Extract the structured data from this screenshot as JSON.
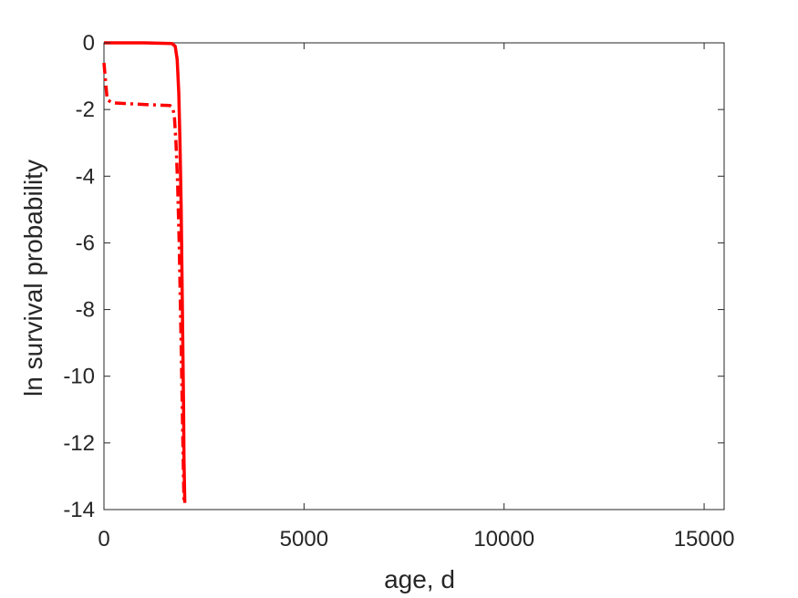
{
  "chart_data": {
    "type": "line",
    "xlabel": "age, d",
    "ylabel": "ln survival probability",
    "xlim": [
      0,
      15500
    ],
    "ylim": [
      -14,
      0
    ],
    "xticks": [
      0,
      5000,
      10000,
      15000
    ],
    "yticks": [
      0,
      -2,
      -4,
      -6,
      -8,
      -10,
      -12,
      -14
    ],
    "xtick_labels": [
      "0",
      "5000",
      "10000",
      "15000"
    ],
    "ytick_labels": [
      "0",
      "-2",
      "-4",
      "-6",
      "-8",
      "-10",
      "-12",
      "-14"
    ],
    "grid": false,
    "series": [
      {
        "color": "#ff0000",
        "style": "solid",
        "points": [
          [
            0,
            0
          ],
          [
            1000,
            0
          ],
          [
            1700,
            -0.02
          ],
          [
            1780,
            -0.1
          ],
          [
            1830,
            -0.5
          ],
          [
            1870,
            -1.5
          ],
          [
            1900,
            -3
          ],
          [
            1930,
            -5
          ],
          [
            1950,
            -7
          ],
          [
            1970,
            -9
          ],
          [
            1990,
            -11
          ],
          [
            2000,
            -12.5
          ],
          [
            2020,
            -13.8
          ]
        ]
      },
      {
        "color": "#ff0000",
        "style": "dashdot",
        "points": [
          [
            0,
            -0.6
          ],
          [
            80,
            -1.7
          ],
          [
            200,
            -1.8
          ],
          [
            1000,
            -1.85
          ],
          [
            1650,
            -1.88
          ],
          [
            1720,
            -1.95
          ],
          [
            1760,
            -2.2
          ],
          [
            1800,
            -3
          ],
          [
            1840,
            -4.2
          ],
          [
            1880,
            -6
          ],
          [
            1920,
            -8.5
          ],
          [
            1950,
            -10.5
          ],
          [
            1980,
            -12.5
          ],
          [
            2000,
            -13.8
          ]
        ]
      }
    ]
  }
}
